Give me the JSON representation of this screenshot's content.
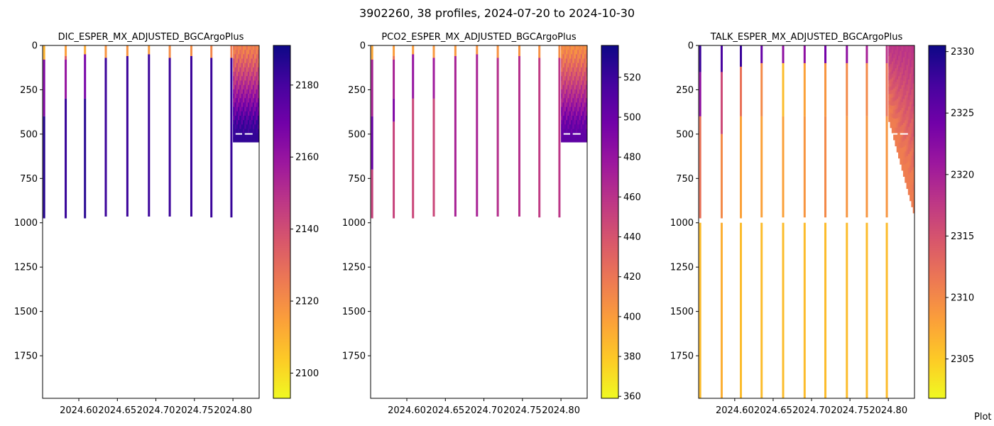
{
  "figure": {
    "title": "3902260, 38 profiles, 2024-07-20 to 2024-10-30",
    "footer": "Plot"
  },
  "colormap": {
    "name": "plasma",
    "stops": [
      "#0d0887",
      "#46039f",
      "#7201a8",
      "#9c179e",
      "#bd3786",
      "#d8576b",
      "#ed7953",
      "#fb9f3a",
      "#fdca26",
      "#f0f921"
    ]
  },
  "chart_data": [
    {
      "type": "heatmap",
      "title": "DIC_ESPER_MX_ADJUSTED_BGCArgoPlus",
      "xlabel": "",
      "ylabel": "",
      "xlim": [
        2024.553,
        2024.834
      ],
      "ylim": [
        1990,
        0
      ],
      "xticks": [
        2024.6,
        2024.65,
        2024.7,
        2024.75,
        2024.8
      ],
      "xtick_labels": [
        "2024.60",
        "2024.65",
        "2024.70",
        "2024.75",
        "2024.80"
      ],
      "yticks": [
        0,
        250,
        500,
        750,
        1000,
        1250,
        1500,
        1750
      ],
      "colorbar": {
        "range": [
          2093,
          2191
        ],
        "ticks": [
          2100,
          2120,
          2140,
          2160,
          2180
        ]
      },
      "profiles": [
        {
          "time": 2024.555,
          "max_depth": 975,
          "segments": [
            [
              0,
              80,
              2110
            ],
            [
              80,
              400,
              2165
            ],
            [
              400,
              975,
              2186
            ]
          ]
        },
        {
          "time": 2024.583,
          "max_depth": 975,
          "segments": [
            [
              0,
              60,
              2115
            ],
            [
              60,
              80,
              2135
            ],
            [
              80,
              300,
              2160
            ],
            [
              300,
              975,
              2183
            ]
          ]
        },
        {
          "time": 2024.608,
          "max_depth": 975,
          "segments": [
            [
              0,
              50,
              2112
            ],
            [
              50,
              300,
              2168
            ],
            [
              300,
              975,
              2186
            ]
          ]
        },
        {
          "time": 2024.635,
          "max_depth": 965,
          "segments": [
            [
              0,
              70,
              2118
            ],
            [
              70,
              965,
              2182
            ]
          ]
        },
        {
          "time": 2024.663,
          "max_depth": 965,
          "segments": [
            [
              0,
              60,
              2118
            ],
            [
              60,
              965,
              2182
            ]
          ]
        },
        {
          "time": 2024.691,
          "max_depth": 965,
          "segments": [
            [
              0,
              50,
              2116
            ],
            [
              50,
              965,
              2182
            ]
          ]
        },
        {
          "time": 2024.718,
          "max_depth": 965,
          "segments": [
            [
              0,
              70,
              2120
            ],
            [
              70,
              965,
              2182
            ]
          ]
        },
        {
          "time": 2024.746,
          "max_depth": 965,
          "segments": [
            [
              0,
              60,
              2120
            ],
            [
              60,
              965,
              2182
            ]
          ]
        },
        {
          "time": 2024.772,
          "max_depth": 970,
          "segments": [
            [
              0,
              70,
              2122
            ],
            [
              70,
              970,
              2182
            ]
          ]
        },
        {
          "time": 2024.798,
          "max_depth": 970,
          "segments": [
            [
              0,
              70,
              2125
            ],
            [
              70,
              970,
              2183
            ]
          ]
        }
      ],
      "dense_block": {
        "x_range": [
          2024.8,
          2024.834
        ],
        "max_depth": 545,
        "surface_value": 2122,
        "deep_value": 2184
      }
    },
    {
      "type": "heatmap",
      "title": "PCO2_ESPER_MX_ADJUSTED_BGCArgoPlus",
      "xlabel": "",
      "ylabel": "",
      "xlim": [
        2024.553,
        2024.834
      ],
      "ylim": [
        1990,
        0
      ],
      "xticks": [
        2024.6,
        2024.65,
        2024.7,
        2024.75,
        2024.8
      ],
      "xtick_labels": [
        "2024.60",
        "2024.65",
        "2024.70",
        "2024.75",
        "2024.80"
      ],
      "yticks": [
        0,
        250,
        500,
        750,
        1000,
        1250,
        1500,
        1750
      ],
      "colorbar": {
        "range": [
          359,
          536
        ],
        "ticks": [
          360,
          380,
          400,
          420,
          440,
          460,
          480,
          500,
          520
        ]
      },
      "profiles": [
        {
          "time": 2024.555,
          "max_depth": 975,
          "segments": [
            [
              0,
              80,
              395
            ],
            [
              80,
              400,
              470
            ],
            [
              400,
              700,
              500
            ],
            [
              700,
              975,
              450
            ]
          ]
        },
        {
          "time": 2024.583,
          "max_depth": 975,
          "segments": [
            [
              0,
              60,
              400
            ],
            [
              60,
              80,
              420
            ],
            [
              80,
              300,
              470
            ],
            [
              300,
              430,
              490
            ],
            [
              430,
              975,
              450
            ]
          ]
        },
        {
          "time": 2024.608,
          "max_depth": 975,
          "segments": [
            [
              0,
              50,
              400
            ],
            [
              50,
              300,
              480
            ],
            [
              300,
              975,
              448
            ]
          ]
        },
        {
          "time": 2024.635,
          "max_depth": 965,
          "segments": [
            [
              0,
              70,
              402
            ],
            [
              70,
              300,
              475
            ],
            [
              300,
              965,
              448
            ]
          ]
        },
        {
          "time": 2024.663,
          "max_depth": 965,
          "segments": [
            [
              0,
              60,
              402
            ],
            [
              60,
              965,
              470
            ]
          ]
        },
        {
          "time": 2024.691,
          "max_depth": 965,
          "segments": [
            [
              0,
              50,
              404
            ],
            [
              50,
              965,
              470
            ]
          ]
        },
        {
          "time": 2024.718,
          "max_depth": 965,
          "segments": [
            [
              0,
              70,
              405
            ],
            [
              70,
              965,
              462
            ]
          ]
        },
        {
          "time": 2024.746,
          "max_depth": 965,
          "segments": [
            [
              0,
              60,
              405
            ],
            [
              60,
              965,
              462
            ]
          ]
        },
        {
          "time": 2024.772,
          "max_depth": 970,
          "segments": [
            [
              0,
              70,
              406
            ],
            [
              70,
              970,
              455
            ]
          ]
        },
        {
          "time": 2024.798,
          "max_depth": 970,
          "segments": [
            [
              0,
              70,
              408
            ],
            [
              70,
              970,
              458
            ]
          ]
        }
      ],
      "dense_block": {
        "x_range": [
          2024.8,
          2024.834
        ],
        "max_depth": 545,
        "surface_value": 405,
        "deep_value": 505
      }
    },
    {
      "type": "heatmap",
      "title": "TALK_ESPER_MX_ADJUSTED_BGCArgoPlus",
      "xlabel": "",
      "ylabel": "",
      "xlim": [
        2024.553,
        2024.834
      ],
      "ylim": [
        1990,
        0
      ],
      "xticks": [
        2024.6,
        2024.65,
        2024.7,
        2024.75,
        2024.8
      ],
      "xtick_labels": [
        "2024.60",
        "2024.65",
        "2024.70",
        "2024.75",
        "2024.80"
      ],
      "yticks": [
        0,
        250,
        500,
        750,
        1000,
        1250,
        1500,
        1750
      ],
      "colorbar": {
        "range": [
          2301.8,
          2330.5
        ],
        "ticks": [
          2305,
          2310,
          2315,
          2320,
          2325,
          2330
        ]
      },
      "profiles": [
        {
          "time": 2024.555,
          "max_depth": 1990,
          "segments": [
            [
              0,
              150,
              2328
            ],
            [
              150,
              400,
              2322
            ],
            [
              400,
              975,
              2312
            ],
            [
              1000,
              1990,
              2306
            ]
          ]
        },
        {
          "time": 2024.583,
          "max_depth": 1990,
          "segments": [
            [
              0,
              150,
              2327
            ],
            [
              150,
              500,
              2316
            ],
            [
              500,
              975,
              2310
            ],
            [
              1000,
              1990,
              2307
            ]
          ]
        },
        {
          "time": 2024.608,
          "max_depth": 1990,
          "segments": [
            [
              0,
              120,
              2328
            ],
            [
              120,
              400,
              2312
            ],
            [
              400,
              975,
              2308
            ],
            [
              1000,
              1990,
              2306
            ]
          ]
        },
        {
          "time": 2024.635,
          "max_depth": 1990,
          "segments": [
            [
              0,
              100,
              2325
            ],
            [
              100,
              400,
              2310
            ],
            [
              400,
              970,
              2308
            ],
            [
              1000,
              1990,
              2306
            ]
          ]
        },
        {
          "time": 2024.663,
          "max_depth": 1990,
          "segments": [
            [
              0,
              100,
              2322
            ],
            [
              100,
              400,
              2306
            ],
            [
              400,
              970,
              2308
            ],
            [
              1000,
              1990,
              2306
            ]
          ]
        },
        {
          "time": 2024.691,
          "max_depth": 1990,
          "segments": [
            [
              0,
              100,
              2322
            ],
            [
              100,
              400,
              2308
            ],
            [
              400,
              970,
              2309
            ],
            [
              1000,
              1990,
              2306
            ]
          ]
        },
        {
          "time": 2024.718,
          "max_depth": 1990,
          "segments": [
            [
              0,
              100,
              2324
            ],
            [
              100,
              400,
              2309
            ],
            [
              400,
              970,
              2310
            ],
            [
              1000,
              1990,
              2306
            ]
          ]
        },
        {
          "time": 2024.746,
          "max_depth": 1990,
          "segments": [
            [
              0,
              100,
              2322
            ],
            [
              100,
              400,
              2310
            ],
            [
              400,
              970,
              2309
            ],
            [
              1000,
              1990,
              2306
            ]
          ]
        },
        {
          "time": 2024.772,
          "max_depth": 1990,
          "segments": [
            [
              0,
              100,
              2320
            ],
            [
              100,
              400,
              2310
            ],
            [
              400,
              970,
              2309
            ],
            [
              1000,
              1990,
              2306
            ]
          ]
        },
        {
          "time": 2024.798,
          "max_depth": 1990,
          "segments": [
            [
              0,
              100,
              2318
            ],
            [
              100,
              400,
              2312
            ],
            [
              400,
              970,
              2309
            ],
            [
              1000,
              1990,
              2306
            ]
          ]
        }
      ],
      "dense_block": {
        "x_range": [
          2024.8,
          2024.834
        ],
        "max_depth": 945,
        "surface_value": 2318,
        "deep_value": 2311,
        "staircase": true
      }
    }
  ]
}
